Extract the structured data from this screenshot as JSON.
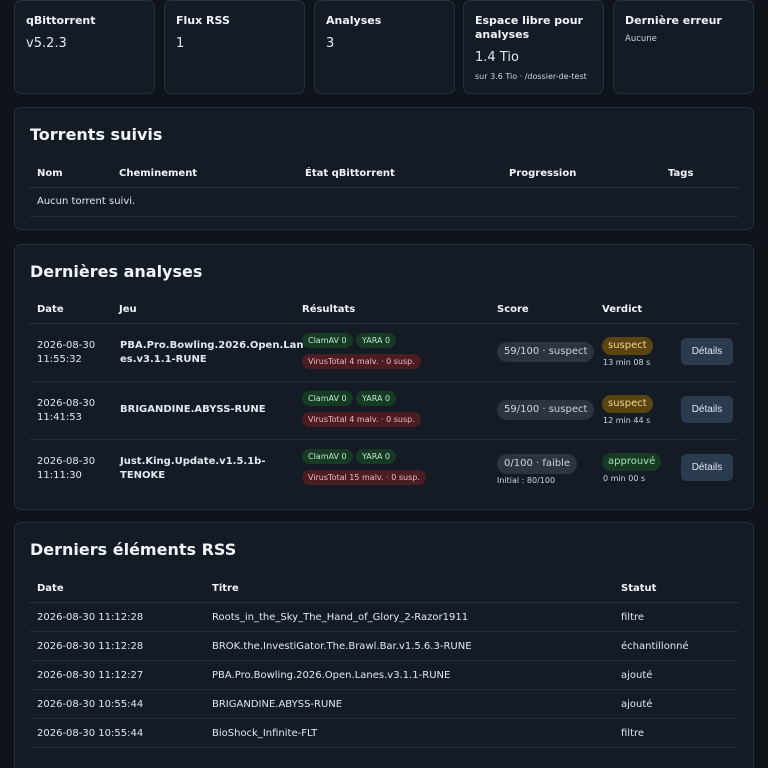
{
  "stats": [
    {
      "title": "qBittorrent",
      "value": "v5.2.3"
    },
    {
      "title": "Flux RSS",
      "value": "1"
    },
    {
      "title": "Analyses",
      "value": "3"
    },
    {
      "title": "Espace libre pour analyses",
      "value": "1.4 Tio",
      "sub": "sur 3.6 Tio · /dossier-de-test"
    },
    {
      "title": "Dernière erreur",
      "value": "Aucune"
    }
  ],
  "torrents": {
    "title": "Torrents suivis",
    "columns": [
      "Nom",
      "Cheminement",
      "État qBittorrent",
      "Progression",
      "Tags"
    ],
    "empty": "Aucun torrent suivi."
  },
  "analyses": {
    "title": "Dernières analyses",
    "columns": [
      "Date",
      "Jeu",
      "Résultats",
      "Score",
      "Verdict"
    ],
    "rows": [
      {
        "date": "2026-08-30",
        "time": "11:55:32",
        "game_l1": "PBA.Pro.Bowling.2026.Open.Lan",
        "game_l2": "es.v3.1.1-RUNE",
        "clamav": "ClamAV 0",
        "yara": "YARA 0",
        "virustotal": "VirusTotal 4 malv. · 0 susp.",
        "score": "59/100 · suspect",
        "score_sub": "",
        "verdict": "suspect",
        "verdict_sub": "13 min 08 s",
        "button": "Détails"
      },
      {
        "date": "2026-08-30",
        "time": "11:41:53",
        "game_l1": "BRIGANDINE.ABYSS-RUNE",
        "game_l2": "",
        "clamav": "ClamAV 0",
        "yara": "YARA 0",
        "virustotal": "VirusTotal 4 malv. · 0 susp.",
        "score": "59/100 · suspect",
        "score_sub": "",
        "verdict": "suspect",
        "verdict_sub": "12 min 44 s",
        "button": "Détails"
      },
      {
        "date": "2026-08-30",
        "time": "11:11:30",
        "game_l1": "Just.King.Update.v1.5.1b-",
        "game_l2": "TENOKE",
        "clamav": "ClamAV 0",
        "yara": "YARA 0",
        "virustotal": "VirusTotal 15 malv. · 0 susp.",
        "score": "0/100 · faible",
        "score_sub": "Initial : 80/100",
        "verdict": "approuvé",
        "verdict_sub": "0 min 00 s",
        "button": "Détails"
      }
    ]
  },
  "rss": {
    "title": "Derniers éléments RSS",
    "columns": [
      "Date",
      "Titre",
      "Statut"
    ],
    "rows": [
      {
        "date": "2026-08-30 11:12:28",
        "title": "Roots_in_the_Sky_The_Hand_of_Glory_2-Razor1911",
        "status": "filtre"
      },
      {
        "date": "2026-08-30 11:12:28",
        "title": "BROK.the.InvestiGator.The.Brawl.Bar.v1.5.6.3-RUNE",
        "status": "échantillonné"
      },
      {
        "date": "2026-08-30 11:12:27",
        "title": "PBA.Pro.Bowling.2026.Open.Lanes.v3.1.1-RUNE",
        "status": "ajouté"
      },
      {
        "date": "2026-08-30 10:55:44",
        "title": "BRIGANDINE.ABYSS-RUNE",
        "status": "ajouté"
      },
      {
        "date": "2026-08-30 10:55:44",
        "title": "BioShock_Infinite-FLT",
        "status": "filtre"
      }
    ]
  },
  "colors": {
    "background": "#0f141b",
    "card": "#141b24",
    "suspect": "#f5d48c",
    "approved": "#9ce3b4",
    "virustotal": "#4a1d24"
  }
}
